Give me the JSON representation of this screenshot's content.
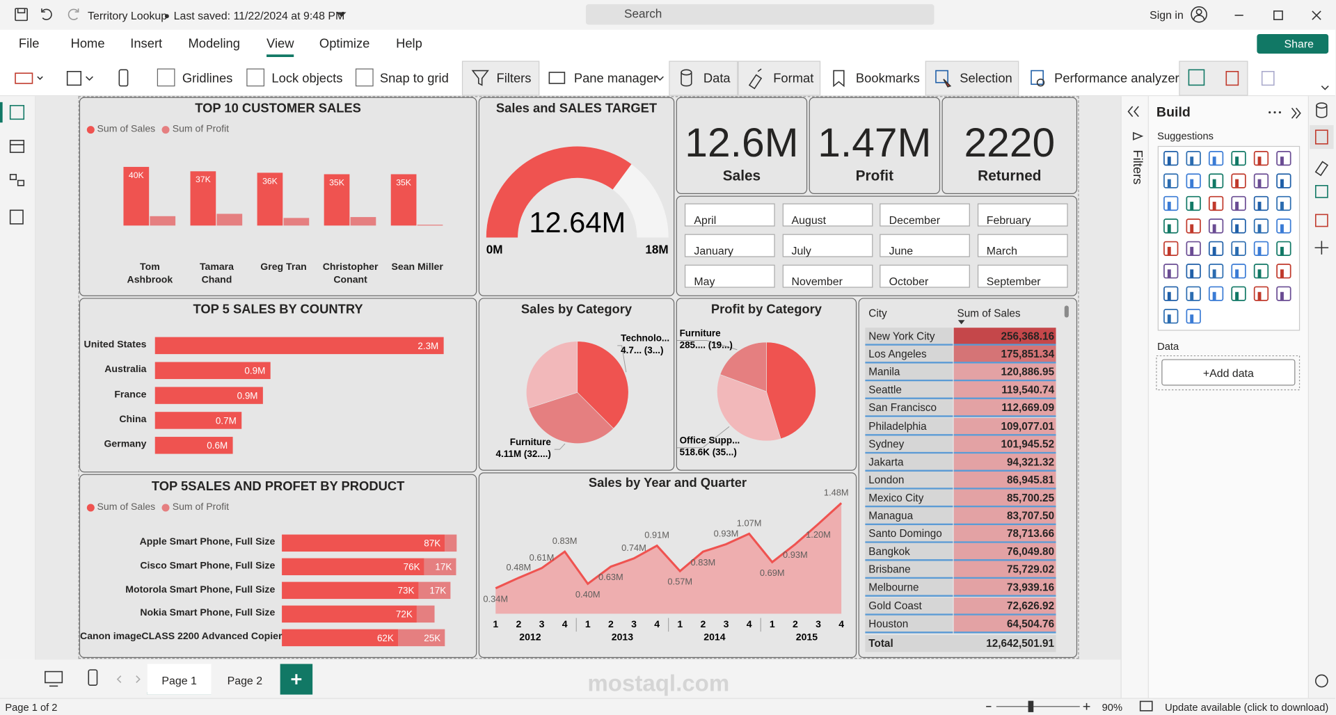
{
  "app": {
    "title": "Territory Lookup",
    "saved": "Last saved: 11/22/2024 at 9:48 PM",
    "search": "Search",
    "sign_in": "Sign in",
    "share": "Share"
  },
  "tabs": [
    "File",
    "Home",
    "Insert",
    "Modeling",
    "View",
    "Optimize",
    "Help"
  ],
  "toolbar": [
    "Gridlines",
    "Lock objects",
    "Snap to grid",
    "Filters",
    "Pane manager",
    "Data",
    "Format",
    "Bookmarks",
    "Selection",
    "Performance analyzer"
  ],
  "customer_sales": {
    "type": "bar",
    "title": "TOP 10 CUSTOMER SALES",
    "categories": [
      "Tom Ashbrook",
      "Tamara Chand",
      "Greg Tran",
      "Christopher Conant",
      "Sean Miller"
    ],
    "series": [
      {
        "name": "Sum of Sales",
        "color": "#ef5350",
        "values": [
          40000,
          37000,
          36000,
          35000,
          35000
        ],
        "value_labels": [
          "40K",
          "37K",
          "36K",
          "35K",
          "35K"
        ]
      },
      {
        "name": "Sum of Profit",
        "color": "#e57f80",
        "values": [
          6400,
          8000,
          5200,
          5800,
          600
        ]
      }
    ],
    "ylim": [
      0,
      47000
    ]
  },
  "gauge": {
    "type": "gauge",
    "title": "Sales and SALES TARGET",
    "value": 12640000,
    "value_label": "12.64M",
    "min": {
      "value": 0,
      "label": "0M"
    },
    "max": {
      "value": 18000000,
      "label": "18M"
    },
    "color": "#ef5350",
    "track_color": "#f4f4f4"
  },
  "cards": [
    {
      "value": "12.6M",
      "label": "Sales"
    },
    {
      "value": "1.47M",
      "label": "Profit"
    },
    {
      "value": "2220",
      "label": "Returned"
    }
  ],
  "months": [
    "April",
    "August",
    "December",
    "February",
    "January",
    "July",
    "June",
    "March",
    "May",
    "November",
    "October",
    "September"
  ],
  "country_sales": {
    "type": "hbar",
    "title": "TOP 5 SALES BY COUNTRY",
    "categories": [
      "United States",
      "Australia",
      "France",
      "China",
      "Germany"
    ],
    "values": [
      2300000,
      920000,
      860000,
      690000,
      620000
    ],
    "value_labels": [
      "2.3M",
      "0.9M",
      "0.9M",
      "0.7M",
      "0.6M"
    ],
    "color": "#ef5350",
    "xlim": [
      0,
      2500000
    ]
  },
  "sales_by_category": {
    "type": "pie",
    "title": "Sales by Category",
    "names": [
      "Technolo...",
      "Furniture",
      null
    ],
    "details": [
      "4.7... (3...)",
      "4.11M (32....)",
      null
    ],
    "values": [
      4740000,
      4110000,
      3790000
    ],
    "colors": [
      "#ef5350",
      "#e57f80",
      "#f2b8ba"
    ]
  },
  "profit_by_category": {
    "type": "pie",
    "title": "Profit by Category",
    "names": [
      null,
      "Office Supp...",
      "Furniture"
    ],
    "details": [
      null,
      "518.6K (35...)",
      "285.... (19...)"
    ],
    "values": [
      666000,
      518600,
      285000
    ],
    "colors": [
      "#ef5350",
      "#f2b8ba",
      "#e57f80"
    ]
  },
  "product_sales": {
    "type": "stacked_hbar",
    "title": "TOP 5SALES AND PROFET BY PRODUCT",
    "categories": [
      "Apple Smart Phone, Full Size",
      "Cisco Smart Phone, Full Size",
      "Motorola Smart Phone, Full Size",
      "Nokia Smart Phone, Full Size",
      "Canon imageCLASS 2200 Advanced Copier"
    ],
    "series": [
      {
        "name": "Sum of Sales",
        "color": "#ef5350",
        "values": [
          87000,
          76000,
          73000,
          72000,
          62000
        ],
        "value_labels": [
          "87K",
          "76K",
          "73K",
          "72K",
          "62K"
        ]
      },
      {
        "name": "Sum of Profit",
        "color": "#e57f80",
        "values": [
          6300,
          17000,
          17000,
          9500,
          25000
        ],
        "value_labels": [
          null,
          "17K",
          "17K",
          null,
          "25K"
        ]
      }
    ],
    "xlim": [
      0,
      100000
    ]
  },
  "sales_by_quarter": {
    "type": "area",
    "title": "Sales by Year and Quarter",
    "categories": [
      "1",
      "2",
      "3",
      "4",
      "1",
      "2",
      "3",
      "4",
      "1",
      "2",
      "3",
      "4",
      "1",
      "2",
      "3",
      "4"
    ],
    "years": [
      "2012",
      "2013",
      "2014",
      "2015"
    ],
    "values": [
      340000,
      480000,
      610000,
      830000,
      400000,
      630000,
      740000,
      910000,
      570000,
      830000,
      930000,
      1070000,
      690000,
      930000,
      1200000,
      1480000
    ],
    "value_labels": [
      "0.34M",
      "0.48M",
      "0.61M",
      "0.83M",
      "0.40M",
      "0.63M",
      "0.74M",
      "0.91M",
      "0.57M",
      "0.83M",
      "0.93M",
      "1.07M",
      "0.69M",
      "0.93M",
      "1.20M",
      "1.48M"
    ],
    "color": "#ef5350",
    "fill": "#eea3a5",
    "ylim": [
      0,
      1600000
    ]
  },
  "city_table": {
    "columns": [
      "City",
      "Sum of Sales"
    ],
    "rows": [
      [
        "New York City",
        "256,368.16"
      ],
      [
        "Los Angeles",
        "175,851.34"
      ],
      [
        "Manila",
        "120,886.95"
      ],
      [
        "Seattle",
        "119,540.74"
      ],
      [
        "San Francisco",
        "112,669.09"
      ],
      [
        "Philadelphia",
        "109,077.01"
      ],
      [
        "Sydney",
        "101,945.52"
      ],
      [
        "Jakarta",
        "94,321.32"
      ],
      [
        "London",
        "86,945.81"
      ],
      [
        "Mexico City",
        "85,700.25"
      ],
      [
        "Managua",
        "83,707.50"
      ],
      [
        "Santo Domingo",
        "78,713.66"
      ],
      [
        "Bangkok",
        "76,049.80"
      ],
      [
        "Brisbane",
        "75,729.02"
      ],
      [
        "Melbourne",
        "73,939.16"
      ],
      [
        "Gold Coast",
        "72,626.92"
      ],
      [
        "Houston",
        "64,504.76"
      ]
    ],
    "total": [
      "Total",
      "12,642,501.91"
    ]
  },
  "panes": {
    "filters": "Filters",
    "build": "Build",
    "suggestions": "Suggestions",
    "data": "Data",
    "add_data": "+Add data"
  },
  "pages": [
    "Page 1",
    "Page 2"
  ],
  "status": {
    "page": "Page 1 of 2",
    "zoom": "90%",
    "update": "Update available (click to download)"
  },
  "watermark": "mostaql.com"
}
